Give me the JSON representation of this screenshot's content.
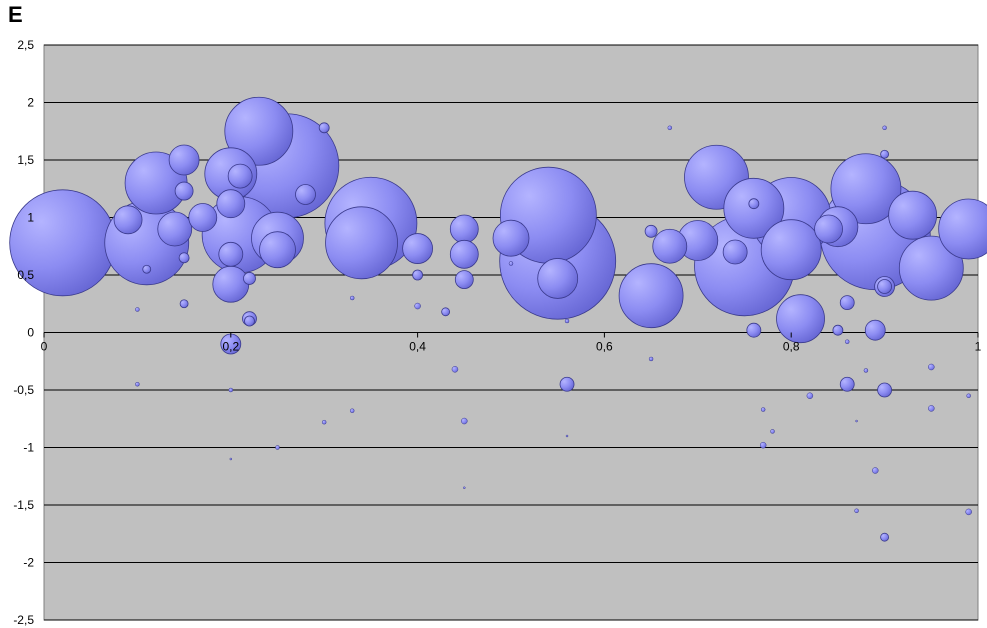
{
  "panel_label": "E",
  "colors": {
    "plot_bg": "#c0c0c0",
    "bubble_fill": "#8c8cf2",
    "bubble_stroke": "#3a3a8c",
    "grid": "#000000"
  },
  "chart_data": {
    "type": "bubble",
    "title": "",
    "xlabel": "",
    "ylabel": "",
    "xlim": [
      0,
      1
    ],
    "ylim": [
      -2.5,
      2.5
    ],
    "grid": "horizontal",
    "x_ticks": [
      "0",
      "0,2",
      "0,4",
      "0,6",
      "0,8",
      "1"
    ],
    "y_ticks": [
      "2,5",
      "2",
      "1,5",
      "1",
      "0,5",
      "0",
      "-0,5",
      "-1",
      "-1,5",
      "-2",
      "-2,5"
    ],
    "points": [
      {
        "x": 0.02,
        "y": 0.78,
        "s": 53
      },
      {
        "x": 0.11,
        "y": 0.78,
        "s": 42
      },
      {
        "x": 0.09,
        "y": 0.98,
        "s": 14
      },
      {
        "x": 0.12,
        "y": 1.3,
        "s": 31
      },
      {
        "x": 0.15,
        "y": 1.5,
        "s": 15
      },
      {
        "x": 0.15,
        "y": 1.23,
        "s": 9
      },
      {
        "x": 0.14,
        "y": 0.9,
        "s": 17
      },
      {
        "x": 0.17,
        "y": 1.0,
        "s": 14
      },
      {
        "x": 0.2,
        "y": 1.38,
        "s": 26
      },
      {
        "x": 0.21,
        "y": 0.85,
        "s": 38
      },
      {
        "x": 0.2,
        "y": 1.12,
        "s": 14
      },
      {
        "x": 0.21,
        "y": 1.36,
        "s": 12
      },
      {
        "x": 0.23,
        "y": 1.75,
        "s": 34
      },
      {
        "x": 0.25,
        "y": 0.82,
        "s": 26
      },
      {
        "x": 0.26,
        "y": 1.45,
        "s": 52
      },
      {
        "x": 0.25,
        "y": 0.72,
        "s": 18
      },
      {
        "x": 0.2,
        "y": 0.68,
        "s": 12
      },
      {
        "x": 0.2,
        "y": 0.42,
        "s": 18
      },
      {
        "x": 0.22,
        "y": 0.47,
        "s": 6
      },
      {
        "x": 0.28,
        "y": 1.2,
        "s": 10
      },
      {
        "x": 0.2,
        "y": -0.1,
        "s": 10
      },
      {
        "x": 0.22,
        "y": 0.12,
        "s": 7
      },
      {
        "x": 0.22,
        "y": 0.1,
        "s": 5
      },
      {
        "x": 0.35,
        "y": 0.95,
        "s": 46
      },
      {
        "x": 0.34,
        "y": 0.78,
        "s": 36
      },
      {
        "x": 0.4,
        "y": 0.73,
        "s": 15
      },
      {
        "x": 0.45,
        "y": 0.9,
        "s": 14
      },
      {
        "x": 0.45,
        "y": 0.68,
        "s": 14
      },
      {
        "x": 0.45,
        "y": 0.46,
        "s": 9
      },
      {
        "x": 0.54,
        "y": 1.02,
        "s": 48
      },
      {
        "x": 0.5,
        "y": 0.82,
        "s": 18
      },
      {
        "x": 0.55,
        "y": 0.62,
        "s": 58
      },
      {
        "x": 0.55,
        "y": 0.47,
        "s": 20
      },
      {
        "x": 0.65,
        "y": 0.32,
        "s": 32
      },
      {
        "x": 0.67,
        "y": 0.75,
        "s": 17
      },
      {
        "x": 0.7,
        "y": 0.8,
        "s": 20
      },
      {
        "x": 0.72,
        "y": 1.35,
        "s": 32
      },
      {
        "x": 0.75,
        "y": 0.58,
        "s": 50
      },
      {
        "x": 0.76,
        "y": 1.08,
        "s": 30
      },
      {
        "x": 0.8,
        "y": 1.0,
        "s": 40
      },
      {
        "x": 0.8,
        "y": 0.72,
        "s": 30
      },
      {
        "x": 0.85,
        "y": 0.92,
        "s": 20
      },
      {
        "x": 0.84,
        "y": 0.9,
        "s": 14
      },
      {
        "x": 0.88,
        "y": 1.25,
        "s": 35
      },
      {
        "x": 0.89,
        "y": 0.85,
        "s": 55
      },
      {
        "x": 0.93,
        "y": 1.02,
        "s": 24
      },
      {
        "x": 0.95,
        "y": 0.56,
        "s": 32
      },
      {
        "x": 0.99,
        "y": 0.9,
        "s": 30
      },
      {
        "x": 0.81,
        "y": 0.12,
        "s": 24
      },
      {
        "x": 0.9,
        "y": 0.4,
        "s": 10
      },
      {
        "x": 0.9,
        "y": 0.4,
        "s": 7
      },
      {
        "x": 0.89,
        "y": 0.02,
        "s": 10
      },
      {
        "x": 0.76,
        "y": 0.02,
        "s": 7
      },
      {
        "x": 0.74,
        "y": 0.7,
        "s": 12
      },
      {
        "x": 0.86,
        "y": 0.26,
        "s": 7
      },
      {
        "x": 0.85,
        "y": 0.02,
        "s": 5
      },
      {
        "x": 0.56,
        "y": -0.45,
        "s": 7
      },
      {
        "x": 0.86,
        "y": -0.45,
        "s": 7
      },
      {
        "x": 0.9,
        "y": -0.5,
        "s": 7
      },
      {
        "x": 0.3,
        "y": 1.78,
        "s": 5
      },
      {
        "x": 0.15,
        "y": 0.25,
        "s": 4
      },
      {
        "x": 0.15,
        "y": 0.65,
        "s": 5
      },
      {
        "x": 0.11,
        "y": 0.55,
        "s": 4
      },
      {
        "x": 0.4,
        "y": 0.5,
        "s": 5
      },
      {
        "x": 0.43,
        "y": 0.18,
        "s": 4
      },
      {
        "x": 0.44,
        "y": -0.32,
        "s": 3
      },
      {
        "x": 0.45,
        "y": -0.77,
        "s": 3
      },
      {
        "x": 0.4,
        "y": 0.23,
        "s": 3
      },
      {
        "x": 0.9,
        "y": 1.55,
        "s": 4
      },
      {
        "x": 0.9,
        "y": -1.78,
        "s": 4
      },
      {
        "x": 0.89,
        "y": -1.2,
        "s": 3
      },
      {
        "x": 0.95,
        "y": -0.3,
        "s": 3
      },
      {
        "x": 0.95,
        "y": -0.66,
        "s": 3
      },
      {
        "x": 0.99,
        "y": -1.56,
        "s": 3
      },
      {
        "x": 0.77,
        "y": -0.98,
        "s": 3
      },
      {
        "x": 0.82,
        "y": -0.55,
        "s": 3
      },
      {
        "x": 0.65,
        "y": 0.88,
        "s": 6
      },
      {
        "x": 0.76,
        "y": 1.12,
        "s": 5
      },
      {
        "x": 0.1,
        "y": 0.2,
        "s": 2
      },
      {
        "x": 0.1,
        "y": -0.45,
        "s": 2
      },
      {
        "x": 0.2,
        "y": -0.5,
        "s": 2
      },
      {
        "x": 0.25,
        "y": -1.0,
        "s": 2
      },
      {
        "x": 0.3,
        "y": -0.78,
        "s": 2
      },
      {
        "x": 0.33,
        "y": -0.68,
        "s": 2
      },
      {
        "x": 0.33,
        "y": 0.3,
        "s": 2
      },
      {
        "x": 0.5,
        "y": 0.6,
        "s": 2
      },
      {
        "x": 0.56,
        "y": 0.1,
        "s": 2
      },
      {
        "x": 0.65,
        "y": -0.23,
        "s": 2
      },
      {
        "x": 0.67,
        "y": 1.78,
        "s": 2
      },
      {
        "x": 0.77,
        "y": -0.67,
        "s": 2
      },
      {
        "x": 0.78,
        "y": -0.86,
        "s": 2
      },
      {
        "x": 0.86,
        "y": -0.08,
        "s": 2
      },
      {
        "x": 0.88,
        "y": -0.33,
        "s": 2
      },
      {
        "x": 0.87,
        "y": -1.55,
        "s": 2
      },
      {
        "x": 0.9,
        "y": 1.78,
        "s": 2
      },
      {
        "x": 0.99,
        "y": -0.55,
        "s": 2
      },
      {
        "x": 0.2,
        "y": -1.1,
        "s": 1
      },
      {
        "x": 0.45,
        "y": -1.35,
        "s": 1
      },
      {
        "x": 0.56,
        "y": -0.9,
        "s": 1
      },
      {
        "x": 0.87,
        "y": -0.77,
        "s": 1
      }
    ]
  }
}
